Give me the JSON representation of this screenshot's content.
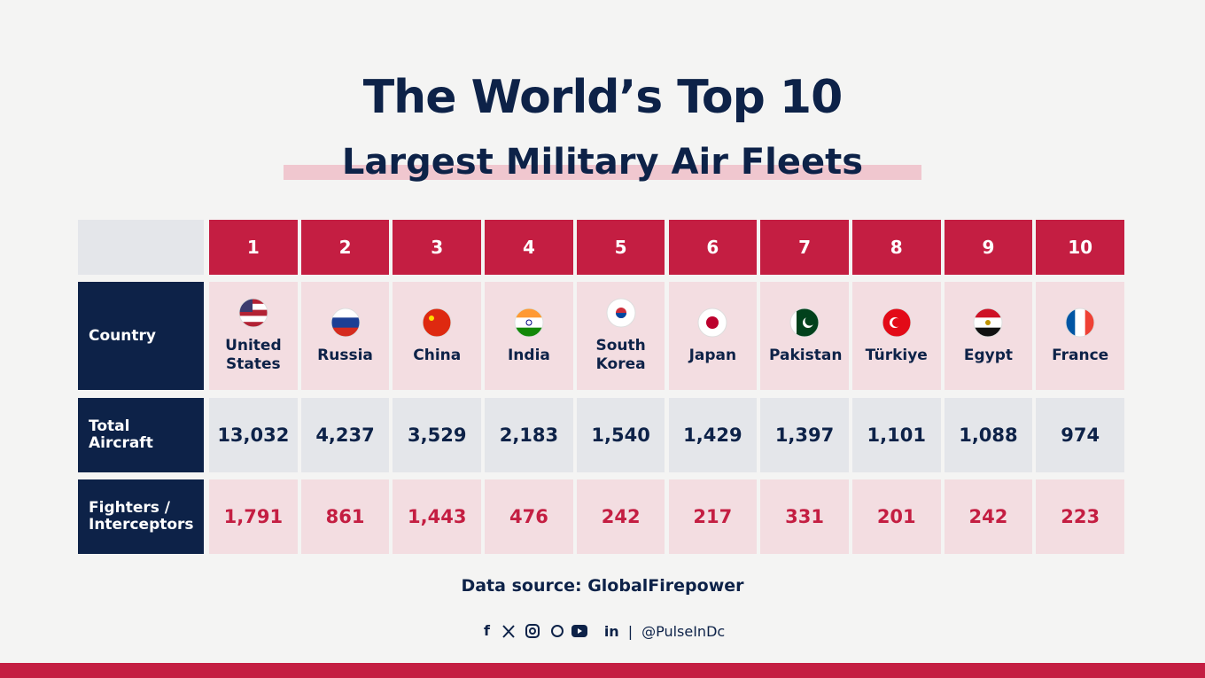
{
  "header": {
    "title": "The World’s Top 10",
    "subtitle": "Largest Military Air Fleets"
  },
  "table": {
    "ranks": [
      1,
      2,
      3,
      4,
      5,
      6,
      7,
      8,
      9,
      10
    ],
    "rows": [
      {
        "label": "Country",
        "cells": [
          "United States",
          "Russia",
          "China",
          "India",
          "South Korea",
          "Japan",
          "Pakistan",
          "Türkiye",
          "Egypt",
          "France"
        ]
      },
      {
        "label": "Total Aircraft",
        "cells": [
          "13,032",
          "4,237",
          "3,529",
          "2,183",
          "1,540",
          "1,429",
          "1,397",
          "1,101",
          "1,088",
          "974"
        ]
      },
      {
        "label": "Fighters / Interceptors",
        "cells": [
          "1,791",
          "861",
          "1,443",
          "476",
          "242",
          "217",
          "331",
          "201",
          "242",
          "223"
        ]
      }
    ]
  },
  "footer": {
    "source": "Data source: GlobalFirepower",
    "handle": "@PulseInDc"
  }
}
